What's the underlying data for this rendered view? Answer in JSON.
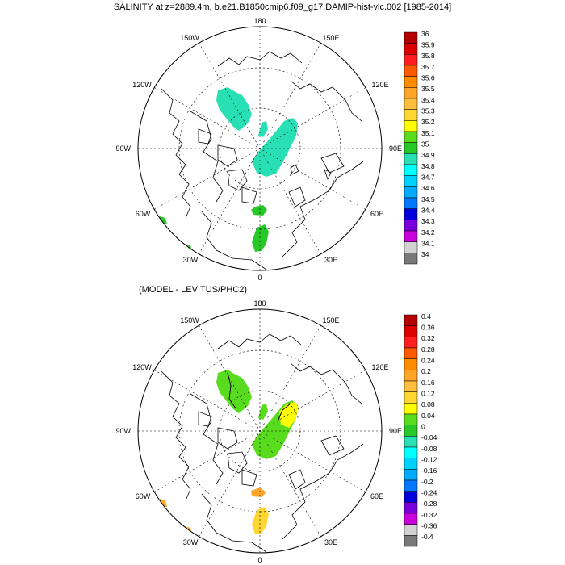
{
  "title": "SALINITY at z=2889.4m, b.e21.B1850cmip6.f09_g17.DAMIP-hist-vlc.002 [1985-2014]",
  "subtitle": "(MODEL - LEVITUS/PHC2)",
  "lon_labels": {
    "top": "180",
    "top_left": "150W",
    "top_right": "150E",
    "upper_left": "120W",
    "upper_right": "120E",
    "left": "90W",
    "right": "90E",
    "lower_left": "60W",
    "lower_right": "60E",
    "bottom_left": "30W",
    "bottom_right": "30E",
    "bottom": "0"
  },
  "colorbar_top": {
    "labels": [
      "36",
      "35.9",
      "35.8",
      "35.7",
      "35.6",
      "35.5",
      "35.4",
      "35.3",
      "35.2",
      "35.1",
      "35",
      "34.9",
      "34.8",
      "34.7",
      "34.6",
      "34.5",
      "34.4",
      "34.3",
      "34.2",
      "34.1",
      "34"
    ],
    "colors": [
      "#b40000",
      "#dc0000",
      "#ff1e1e",
      "#ff5a00",
      "#ff8c00",
      "#ffa628",
      "#ffbe3c",
      "#ffd732",
      "#ffff00",
      "#5adc1e",
      "#28c828",
      "#28e0b4",
      "#00ffff",
      "#00d2ff",
      "#00aaff",
      "#0078ff",
      "#0000dc",
      "#7800dc",
      "#c800dc",
      "#d2d2d2",
      "#787878"
    ]
  },
  "colorbar_bottom": {
    "labels": [
      "0.4",
      "0.36",
      "0.32",
      "0.28",
      "0.24",
      "0.2",
      "0.16",
      "0.12",
      "0.08",
      "0.04",
      "0",
      "-0.04",
      "-0.08",
      "-0.12",
      "-0.16",
      "-0.2",
      "-0.24",
      "-0.28",
      "-0.32",
      "-0.36",
      "-0.4"
    ],
    "colors": [
      "#b40000",
      "#dc0000",
      "#ff1e1e",
      "#ff5a00",
      "#ff8c00",
      "#ffa628",
      "#ffbe3c",
      "#ffd732",
      "#ffff00",
      "#5adc1e",
      "#28c828",
      "#28e0b4",
      "#00ffff",
      "#00d2ff",
      "#00aaff",
      "#0078ff",
      "#0000dc",
      "#7800dc",
      "#c800dc",
      "#d2d2d2",
      "#787878"
    ]
  }
}
